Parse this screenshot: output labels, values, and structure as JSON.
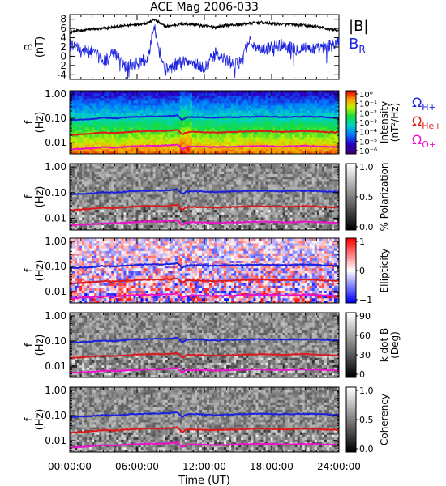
{
  "figure": {
    "title": "ACE Mag 2006-033",
    "time_axis_label": "Time (UT)",
    "time_ticks": [
      "00:00:00",
      "06:00:00",
      "12:00:00",
      "18:00:00",
      "24:00:00"
    ],
    "colors": {
      "H": "#1a22dd",
      "He": "#dd1a1a",
      "O": "#ee11cc",
      "B": "#000000",
      "BR": "#1a22dd"
    }
  },
  "chart_data": [
    {
      "type": "line",
      "title": "ACE Mag 2006-033",
      "ylabel": "B\n(nT)",
      "ylim": [
        -5,
        9
      ],
      "yticks": [
        "8",
        "6",
        "4",
        "2",
        "0",
        "-2",
        "-4"
      ],
      "xlabel": "Time (UT)",
      "xlim": [
        0,
        24
      ],
      "series": [
        {
          "name": "|B|",
          "color": "#000000",
          "x": [
            0,
            1,
            2,
            3,
            4,
            5,
            6,
            7,
            7.5,
            8,
            8.5,
            9,
            10,
            11,
            12,
            13,
            14,
            15,
            16,
            17,
            18,
            19,
            20,
            21,
            22,
            23,
            24
          ],
          "y": [
            5.2,
            5.6,
            5.8,
            6.0,
            6.3,
            6.6,
            6.9,
            7.2,
            8.0,
            7.2,
            6.4,
            6.6,
            7.0,
            6.9,
            6.5,
            6.3,
            6.7,
            6.8,
            7.1,
            7.3,
            7.0,
            6.9,
            6.8,
            6.6,
            6.4,
            5.9,
            5.6
          ]
        },
        {
          "name": "B",
          "subscript": "R",
          "color": "#1a22dd",
          "x": [
            0,
            1,
            2,
            3,
            4,
            5,
            6,
            7,
            7.5,
            8,
            8.5,
            9,
            10,
            11,
            12,
            13,
            14,
            15,
            16,
            17,
            18,
            19,
            20,
            21,
            22,
            23,
            24
          ],
          "y": [
            2.5,
            1.5,
            0.8,
            -1.0,
            0.5,
            -2.0,
            -1.5,
            -0.5,
            7.5,
            1.0,
            -3.0,
            -2.5,
            -1.0,
            -1.5,
            -2.5,
            0.5,
            -1.0,
            -2.0,
            3.5,
            1.0,
            2.0,
            2.5,
            1.5,
            2.0,
            1.5,
            2.0,
            3.0
          ]
        }
      ]
    },
    {
      "type": "heatmap",
      "ylabel": "f\n(Hz)",
      "yticks": [
        "1.00",
        "0.10",
        "0.01"
      ],
      "colorbar": {
        "label": "Intensity\n(nT²/Hz)",
        "scale": "log",
        "ticks": [
          "10⁰",
          "10⁻¹",
          "10⁻²",
          "10⁻³",
          "10⁻⁴",
          "10⁻⁵",
          "10⁻⁶"
        ]
      },
      "colormap": "rainbow",
      "gyrofrequency_lines": [
        "ΩH+",
        "ΩHe+",
        "ΩO+"
      ]
    },
    {
      "type": "heatmap",
      "ylabel": "f\n(Hz)",
      "yticks": [
        "1.00",
        "0.10",
        "0.01"
      ],
      "colorbar": {
        "label": "% Polarization",
        "ticks": [
          "1.0",
          "0.5",
          "0.0"
        ]
      },
      "colormap": "gray"
    },
    {
      "type": "heatmap",
      "ylabel": "f\n(Hz)",
      "yticks": [
        "1.00",
        "0.10",
        "0.01"
      ],
      "colorbar": {
        "label": "Ellipticity",
        "ticks": [
          "1",
          "0",
          "−1"
        ]
      },
      "colormap": "blue-white-red"
    },
    {
      "type": "heatmap",
      "ylabel": "f\n(Hz)",
      "yticks": [
        "1.00",
        "0.10",
        "0.01"
      ],
      "colorbar": {
        "label": "k dot B\n(Deg)",
        "ticks": [
          "90",
          "60",
          "30",
          "0"
        ]
      },
      "colormap": "gray"
    },
    {
      "type": "heatmap",
      "ylabel": "f\n(Hz)",
      "yticks": [
        "1.00",
        "0.10",
        "0.01"
      ],
      "colorbar": {
        "label": "Coherency",
        "ticks": [
          "1.0",
          "0.5",
          "0.0"
        ]
      },
      "colormap": "gray"
    }
  ],
  "gyro_lines": {
    "t": [
      0,
      1,
      2,
      3,
      4,
      5,
      6,
      7,
      8,
      9,
      9.6,
      10,
      10.4,
      11,
      12,
      13,
      14,
      15,
      16,
      17,
      18,
      19,
      20,
      21,
      22,
      23,
      24
    ],
    "H": [
      0.085,
      0.09,
      0.095,
      0.105,
      0.1,
      0.11,
      0.115,
      0.12,
      0.12,
      0.125,
      0.135,
      0.085,
      0.11,
      0.115,
      0.11,
      0.105,
      0.11,
      0.112,
      0.115,
      0.118,
      0.115,
      0.112,
      0.115,
      0.118,
      0.115,
      0.11,
      0.108
    ],
    "He": [
      0.021,
      0.022,
      0.024,
      0.026,
      0.025,
      0.027,
      0.029,
      0.03,
      0.03,
      0.031,
      0.034,
      0.021,
      0.027,
      0.028,
      0.027,
      0.026,
      0.027,
      0.028,
      0.029,
      0.03,
      0.029,
      0.028,
      0.029,
      0.03,
      0.029,
      0.027,
      0.027
    ],
    "O": [
      0.0053,
      0.0056,
      0.006,
      0.0065,
      0.0063,
      0.0068,
      0.0072,
      0.0075,
      0.0075,
      0.0078,
      0.0085,
      0.0053,
      0.0068,
      0.007,
      0.0068,
      0.0066,
      0.0068,
      0.007,
      0.0072,
      0.0074,
      0.0072,
      0.007,
      0.0072,
      0.0074,
      0.0072,
      0.0069,
      0.0067
    ]
  },
  "legends": {
    "top": [
      {
        "main": "|B|",
        "sub": ""
      },
      {
        "main": "B",
        "sub": "R"
      }
    ],
    "gyro": [
      {
        "main": "Ω",
        "sub": "H+"
      },
      {
        "main": "Ω",
        "sub": "He+"
      },
      {
        "main": "Ω",
        "sub": "O+"
      }
    ]
  }
}
